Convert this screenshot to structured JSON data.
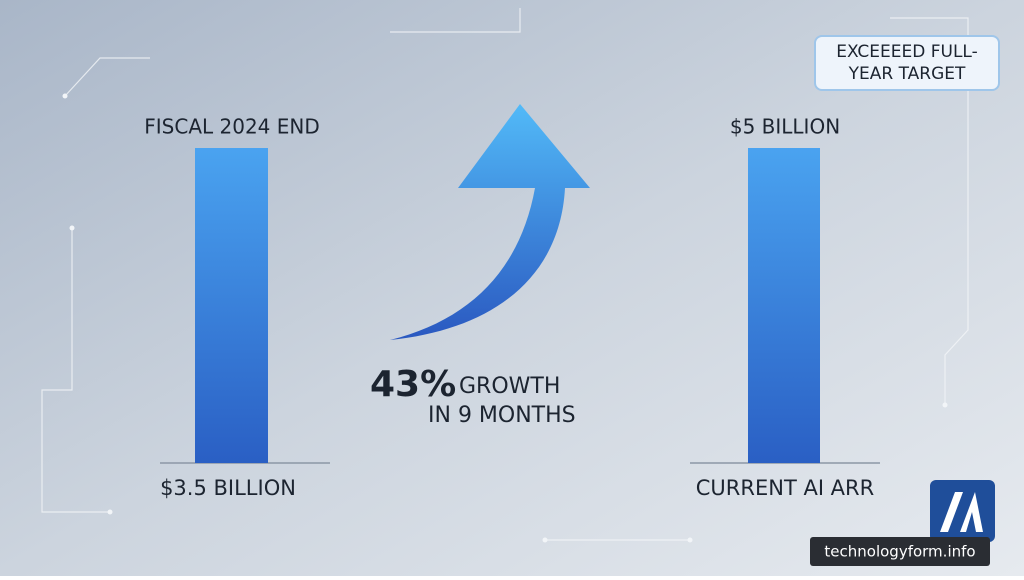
{
  "left": {
    "label_top": "FISCAL 2024 END",
    "label_bottom": "$3.5 BILLION"
  },
  "right": {
    "label_top": "$5 BILLION",
    "label_bottom": "CURRENT AI ARR"
  },
  "growth": {
    "percent": "43%",
    "line1": "GROWTH",
    "line2": "IN 9 MONTHS"
  },
  "badge": {
    "lines": [
      "EXCEEEED FULL-",
      "YEAR TARGET"
    ]
  },
  "watermark": "technologyform.info"
}
